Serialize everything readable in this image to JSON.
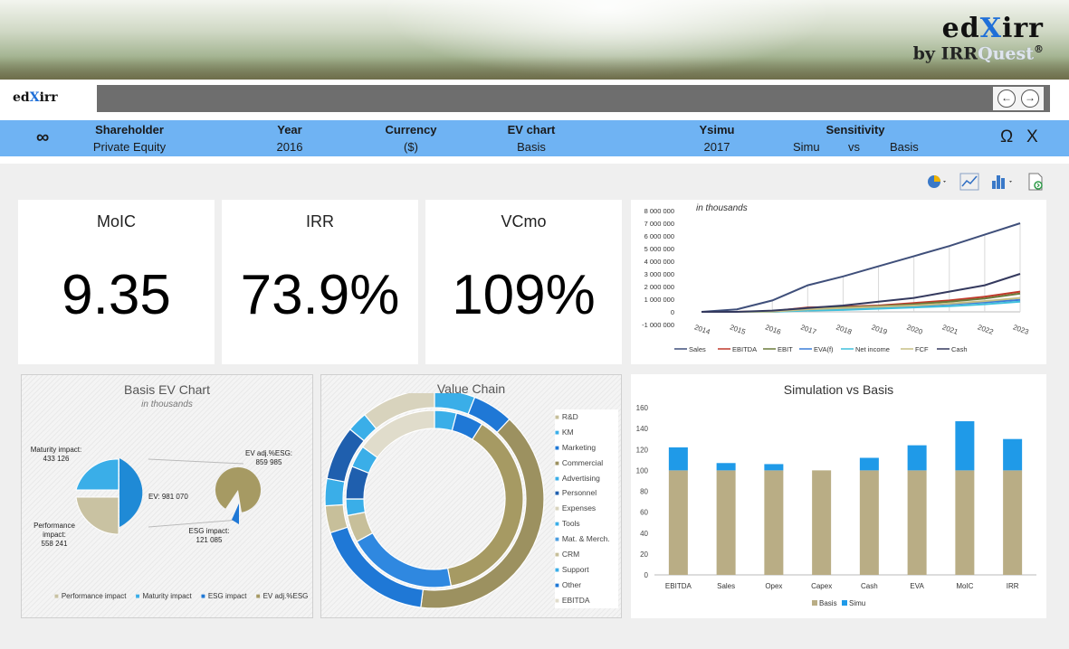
{
  "banner": {
    "brand": "edXirr",
    "brand_pre": "ed",
    "brand_x": "X",
    "brand_post": "irr",
    "byline_prefix": "by IRR",
    "byline_quest": "Quest",
    "registered": "®"
  },
  "nav": {
    "logo_pre": "ed",
    "logo_x": "X",
    "logo_post": "irr",
    "back_icon": "arrow-left-circle-icon",
    "forward_icon": "arrow-right-circle-icon"
  },
  "filters": {
    "infinity": "∞",
    "shareholder": {
      "label": "Shareholder",
      "value": "Private Equity"
    },
    "year": {
      "label": "Year",
      "value": "2016"
    },
    "currency": {
      "label": "Currency",
      "value": "($)"
    },
    "ev_chart": {
      "label": "EV chart",
      "value": "Basis"
    },
    "ysimu": {
      "label": "Ysimu",
      "value": "2017"
    },
    "sensitivity": {
      "label": "Sensitivity",
      "simu": "Simu",
      "vs": "vs",
      "basis": "Basis"
    },
    "omega": "Ω",
    "close": "X"
  },
  "toolbar": {
    "icons": [
      "pie-chart-icon",
      "line-chart-icon",
      "bar-chart-icon",
      "export-icon"
    ]
  },
  "kpis": [
    {
      "title": "MoIC",
      "value": "9.35"
    },
    {
      "title": "IRR",
      "value": "73.9%"
    },
    {
      "title": "VCmo",
      "value": "109%"
    }
  ],
  "colors": {
    "accent": "#1f9ae8",
    "basis": "#b9ad85",
    "filterbar": "#6fb3f3",
    "navy": "#3f4f7a"
  },
  "chart_data": [
    {
      "type": "line",
      "annotation": "in thousands",
      "x": [
        "2014",
        "2015",
        "2016",
        "2017",
        "2018",
        "2019",
        "2020",
        "2021",
        "2022",
        "2023"
      ],
      "ylim": [
        -1000000,
        8000000
      ],
      "yticks": [
        "8 000 000",
        "7 000 000",
        "6 000 000",
        "5 000 000",
        "4 000 000",
        "3 000 000",
        "2 000 000",
        "1 000 000",
        "0",
        "-1 000 000"
      ],
      "series": [
        {
          "name": "Sales",
          "color": "#3f4f7a",
          "values": [
            0,
            200000,
            900000,
            2100000,
            2800000,
            3600000,
            4400000,
            5200000,
            6100000,
            7000000
          ]
        },
        {
          "name": "EBITDA",
          "color": "#c0392b",
          "values": [
            0,
            0,
            50000,
            350000,
            400000,
            500000,
            700000,
            900000,
            1200000,
            1600000
          ]
        },
        {
          "name": "EBIT",
          "color": "#6b7a3a",
          "values": [
            0,
            0,
            30000,
            300000,
            350000,
            450000,
            600000,
            800000,
            1050000,
            1450000
          ]
        },
        {
          "name": "EVA(f)",
          "color": "#3b7dd8",
          "values": [
            0,
            0,
            0,
            150000,
            200000,
            300000,
            450000,
            600000,
            750000,
            950000
          ]
        },
        {
          "name": "Net income",
          "color": "#3fc0dc",
          "values": [
            0,
            0,
            0,
            100000,
            150000,
            250000,
            350000,
            450000,
            600000,
            800000
          ]
        },
        {
          "name": "FCF",
          "color": "#c7bf84",
          "values": [
            0,
            0,
            20000,
            200000,
            300000,
            400000,
            500000,
            650000,
            850000,
            1100000
          ]
        },
        {
          "name": "Cash",
          "color": "#34395e",
          "values": [
            0,
            0,
            100000,
            300000,
            500000,
            800000,
            1100000,
            1600000,
            2100000,
            3000000
          ]
        }
      ]
    },
    {
      "type": "pie",
      "title": "Basis EV Chart",
      "subtitle": "in thousands",
      "labels": [
        {
          "name": "Maturity impact:",
          "value": "433 126"
        },
        {
          "name": "Performance impact:",
          "value": "558 241"
        },
        {
          "name": "EV:",
          "value": "981 070"
        },
        {
          "name": "EV adj.%ESG:",
          "value": "859 985"
        },
        {
          "name": "ESG impact:",
          "value": "121 085"
        }
      ],
      "slices": [
        {
          "name": "Performance impact",
          "value": 558241,
          "color": "#c9c2a2"
        },
        {
          "name": "Maturity impact",
          "value": 433126,
          "color": "#3aaee8"
        },
        {
          "name": "EV adj.%ESG",
          "value": 859985,
          "color": "#a69a63"
        },
        {
          "name": "ESG impact",
          "value": 121085,
          "color": "#1f78d6"
        }
      ],
      "legend": [
        "Performance impact",
        "Maturity impact",
        "ESG impact",
        "EV adj.%ESG"
      ]
    },
    {
      "type": "donut",
      "title": "Value Chain",
      "legend": [
        {
          "name": "R&D",
          "color": "#c7bf9a"
        },
        {
          "name": "KM",
          "color": "#3aaee8"
        },
        {
          "name": "Marketing",
          "color": "#1f78d6"
        },
        {
          "name": "Commercial",
          "color": "#9c9160"
        },
        {
          "name": "Advertising",
          "color": "#3aaee8"
        },
        {
          "name": "Personnel",
          "color": "#1f5fae"
        },
        {
          "name": "Expenses",
          "color": "#d8d3bd"
        },
        {
          "name": "Tools",
          "color": "#3aaee8"
        },
        {
          "name": "Mat. & Merch.",
          "color": "#4c9ee0"
        },
        {
          "name": "CRM",
          "color": "#c7bf9a"
        },
        {
          "name": "Support",
          "color": "#3aaee8"
        },
        {
          "name": "Other",
          "color": "#1f78d6"
        },
        {
          "name": "EBITDA",
          "color": "#e0dccb"
        }
      ],
      "rings": [
        {
          "slices": [
            {
              "value": 6,
              "color": "#3aaee8"
            },
            {
              "value": 6,
              "color": "#1f78d6"
            },
            {
              "value": 40,
              "color": "#9c9160"
            },
            {
              "value": 18,
              "color": "#1f78d6"
            },
            {
              "value": 4,
              "color": "#c7bf9a"
            },
            {
              "value": 4,
              "color": "#3aaee8"
            },
            {
              "value": 8,
              "color": "#1f5fae"
            },
            {
              "value": 3,
              "color": "#3aaee8"
            },
            {
              "value": 11,
              "color": "#d8d3bd"
            }
          ]
        },
        {
          "slices": [
            {
              "value": 4,
              "color": "#3aaee8"
            },
            {
              "value": 5,
              "color": "#1f78d6"
            },
            {
              "value": 38,
              "color": "#a69a63"
            },
            {
              "value": 20,
              "color": "#2f88e0"
            },
            {
              "value": 5,
              "color": "#c7bf9a"
            },
            {
              "value": 3,
              "color": "#3aaee8"
            },
            {
              "value": 6,
              "color": "#1f5fae"
            },
            {
              "value": 4,
              "color": "#3aaee8"
            },
            {
              "value": 15,
              "color": "#e0dccb"
            }
          ]
        }
      ]
    },
    {
      "type": "bar",
      "title": "Simulation vs Basis",
      "categories": [
        "EBITDA",
        "Sales",
        "Opex",
        "Capex",
        "Cash",
        "EVA",
        "MoIC",
        "IRR"
      ],
      "ylim": [
        0,
        160
      ],
      "yticks": [
        "160",
        "140",
        "120",
        "100",
        "80",
        "60",
        "40",
        "20",
        "0"
      ],
      "series": [
        {
          "name": "Basis",
          "color": "#b9ad85",
          "values": [
            100,
            100,
            100,
            100,
            100,
            100,
            100,
            100
          ]
        },
        {
          "name": "Simu",
          "color": "#1f9ae8",
          "values": [
            22,
            7,
            6,
            0,
            12,
            24,
            47,
            30
          ]
        }
      ],
      "stacked": true,
      "legend": "bottom"
    }
  ]
}
